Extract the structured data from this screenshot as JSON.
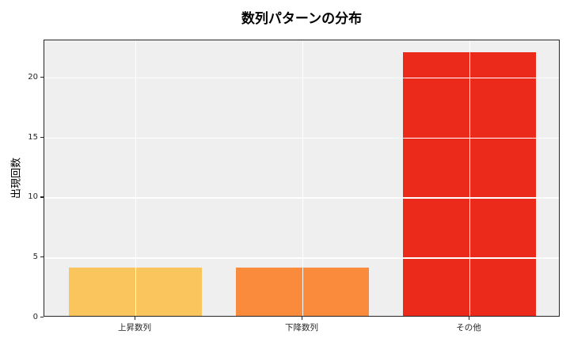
{
  "chart_data": {
    "type": "bar",
    "title": "数列パターンの分布",
    "xlabel": "",
    "ylabel": "出現回数",
    "categories": [
      "上昇数列",
      "下降数列",
      "その他"
    ],
    "values": [
      4,
      4,
      22
    ],
    "bar_colors": [
      "#FBC55E",
      "#FA8B3C",
      "#EB2A1B"
    ],
    "yticks": [
      0,
      5,
      10,
      15,
      20
    ],
    "ylim": [
      0,
      23.1
    ],
    "grid": "on",
    "grid_color": "#FFFFFF",
    "plot_background": "#EFEFEF",
    "spine_color": "#262626",
    "legend": "none"
  }
}
